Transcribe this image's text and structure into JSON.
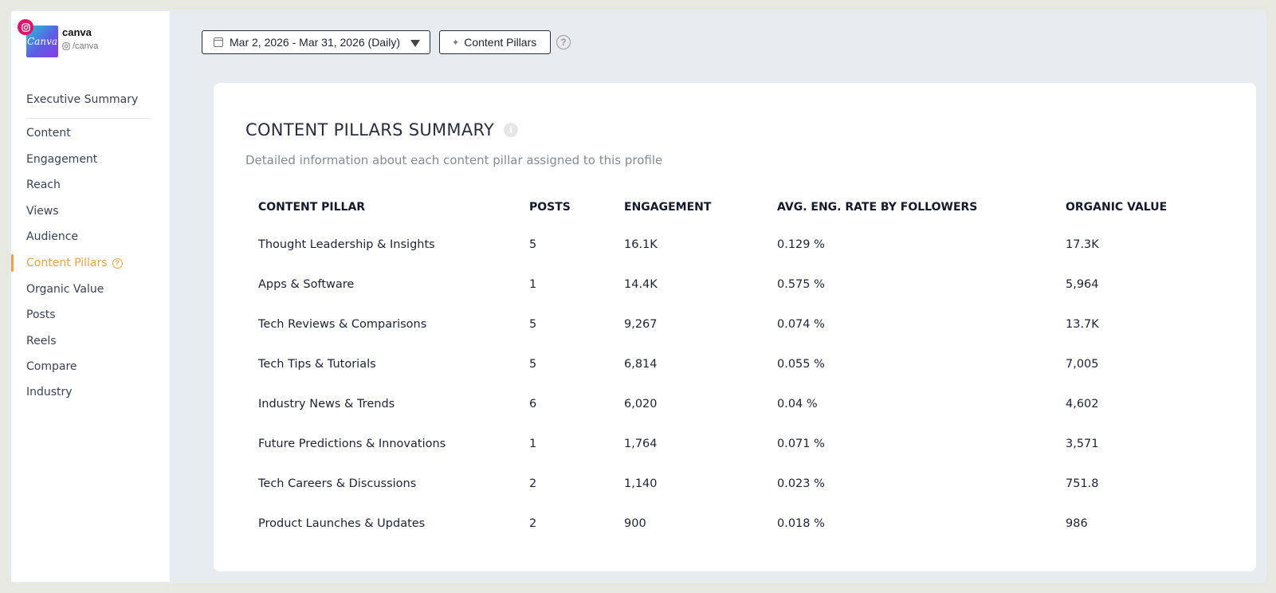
{
  "profile": {
    "name": "canva",
    "handle": "/canva",
    "avatar_text": "Canva",
    "network_icon": "instagram-icon"
  },
  "nav": {
    "items": [
      {
        "label": "Executive Summary"
      },
      {
        "label": "Content"
      },
      {
        "label": "Engagement"
      },
      {
        "label": "Reach"
      },
      {
        "label": "Views"
      },
      {
        "label": "Audience"
      },
      {
        "label": "Content Pillars"
      },
      {
        "label": "Organic Value"
      },
      {
        "label": "Posts"
      },
      {
        "label": "Reels"
      },
      {
        "label": "Compare"
      },
      {
        "label": "Industry"
      }
    ],
    "active": "Content Pillars",
    "accent_color": "#f2a03d"
  },
  "toolbar": {
    "date_range": "Mar 2, 2026 - Mar 31, 2026 (Daily)",
    "pillars_button": "Content Pillars",
    "help_symbol": "?"
  },
  "card": {
    "title": "CONTENT PILLARS SUMMARY",
    "subtitle": "Detailed information about each content pillar assigned to this profile",
    "columns": [
      "CONTENT PILLAR",
      "POSTS",
      "ENGAGEMENT",
      "AVG. ENG. RATE BY FOLLOWERS",
      "ORGANIC VALUE"
    ],
    "rows": [
      [
        "Thought Leadership & Insights",
        "5",
        "16.1K",
        "0.129 %",
        "17.3K"
      ],
      [
        "Apps & Software",
        "1",
        "14.4K",
        "0.575 %",
        "5,964"
      ],
      [
        "Tech Reviews & Comparisons",
        "5",
        "9,267",
        "0.074 %",
        "13.7K"
      ],
      [
        "Tech Tips & Tutorials",
        "5",
        "6,814",
        "0.055 %",
        "7,005"
      ],
      [
        "Industry News & Trends",
        "6",
        "6,020",
        "0.04 %",
        "4,602"
      ],
      [
        "Future Predictions & Innovations",
        "1",
        "1,764",
        "0.071 %",
        "3,571"
      ],
      [
        "Tech Careers & Discussions",
        "2",
        "1,140",
        "0.023 %",
        "751.8"
      ],
      [
        "Product Launches & Updates",
        "2",
        "900",
        "0.018 %",
        "986"
      ]
    ]
  }
}
